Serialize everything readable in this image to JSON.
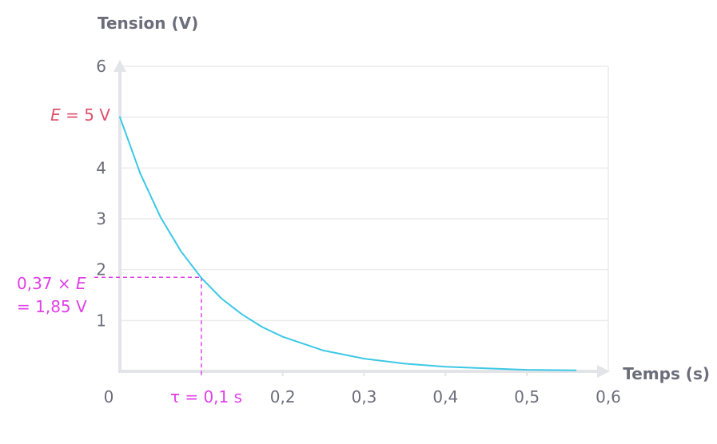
{
  "colors": {
    "axis": "#e3e4e8",
    "grid": "#ececef",
    "text": "#6b6e7a",
    "curve": "#3cc8e6",
    "e_label": "#e0506e",
    "tau_annotation": "#e040e8"
  },
  "chart_data": {
    "type": "line",
    "xlabel": "Temps (s)",
    "ylabel": "Tension (V)",
    "xlim": [
      0,
      0.6
    ],
    "ylim": [
      0,
      6
    ],
    "x_ticks": [
      "0",
      "0,2",
      "0,3",
      "0,4",
      "0,5",
      "0,6"
    ],
    "y_ticks": [
      "1",
      "2",
      "3",
      "4",
      "6"
    ],
    "grid": true,
    "series": [
      {
        "x": [
          0,
          0.025,
          0.05,
          0.075,
          0.1,
          0.125,
          0.15,
          0.175,
          0.2,
          0.25,
          0.3,
          0.35,
          0.4,
          0.45,
          0.5,
          0.56
        ],
        "y": [
          5.0,
          3.89,
          3.03,
          2.36,
          1.84,
          1.43,
          1.12,
          0.87,
          0.68,
          0.41,
          0.25,
          0.15,
          0.09,
          0.06,
          0.03,
          0.02
        ]
      }
    ],
    "annotations": {
      "e_label_italic": "E",
      "e_label_rest": " = 5 V",
      "e_value": 5,
      "point_line1_prefix": "0,37 × ",
      "point_line1_italic": "E",
      "point_line2": "= 1,85 V",
      "point_value": 1.85,
      "tau_label": "τ = 0,1 s",
      "tau_value": 0.1
    }
  }
}
